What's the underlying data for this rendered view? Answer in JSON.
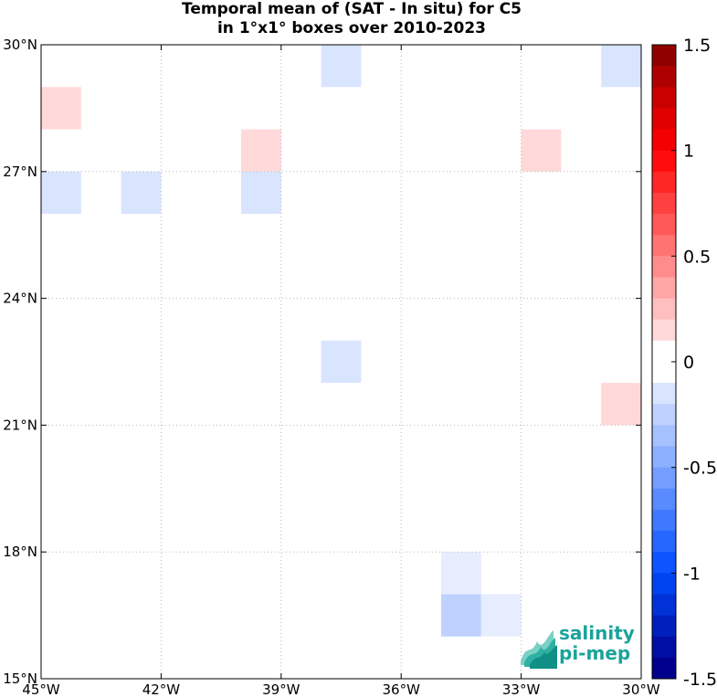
{
  "title_line1": "Temporal mean of (SAT - In situ) for C5",
  "title_line2": "in 1°x1° boxes over 2010-2023",
  "map": {
    "lon_range": [
      -45,
      -30
    ],
    "lat_range": [
      15,
      30
    ],
    "lon_ticks": [
      -45,
      -42,
      -39,
      -36,
      -33,
      -30
    ],
    "lat_ticks": [
      15,
      18,
      21,
      24,
      27,
      30
    ],
    "lon_tick_labels": [
      "45°W",
      "42°W",
      "39°W",
      "36°W",
      "33°W",
      "30°W"
    ],
    "lat_tick_labels": [
      "15°N",
      "18°N",
      "21°N",
      "24°N",
      "27°N",
      "30°N"
    ],
    "grid": true,
    "cells": [
      {
        "lon": -44.5,
        "lat": 28.5,
        "value": 0.15
      },
      {
        "lon": -44.5,
        "lat": 26.5,
        "value": -0.15
      },
      {
        "lon": -42.5,
        "lat": 26.5,
        "value": -0.15
      },
      {
        "lon": -39.5,
        "lat": 27.5,
        "value": 0.15
      },
      {
        "lon": -39.5,
        "lat": 26.5,
        "value": -0.15
      },
      {
        "lon": -37.5,
        "lat": 29.5,
        "value": -0.15
      },
      {
        "lon": -37.5,
        "lat": 22.5,
        "value": -0.15
      },
      {
        "lon": -32.5,
        "lat": 27.5,
        "value": 0.15
      },
      {
        "lon": -30.5,
        "lat": 29.5,
        "value": -0.15
      },
      {
        "lon": -30.5,
        "lat": 21.5,
        "value": 0.15
      },
      {
        "lon": -34.5,
        "lat": 17.5,
        "value": -0.1
      },
      {
        "lon": -34.5,
        "lat": 16.5,
        "value": -0.25
      },
      {
        "lon": -33.5,
        "lat": 16.5,
        "value": -0.1
      }
    ]
  },
  "colorbar": {
    "min": -1.5,
    "max": 1.5,
    "ticks": [
      1.5,
      1,
      0.5,
      0,
      -0.5,
      -1,
      -1.5
    ],
    "tick_labels": [
      "1.5",
      "1",
      "0.5",
      "0",
      "-0.5",
      "-1",
      "-1.5"
    ]
  },
  "logo": {
    "line1": "salinity",
    "line2": "pi-mep",
    "color": "#1aa39a"
  }
}
